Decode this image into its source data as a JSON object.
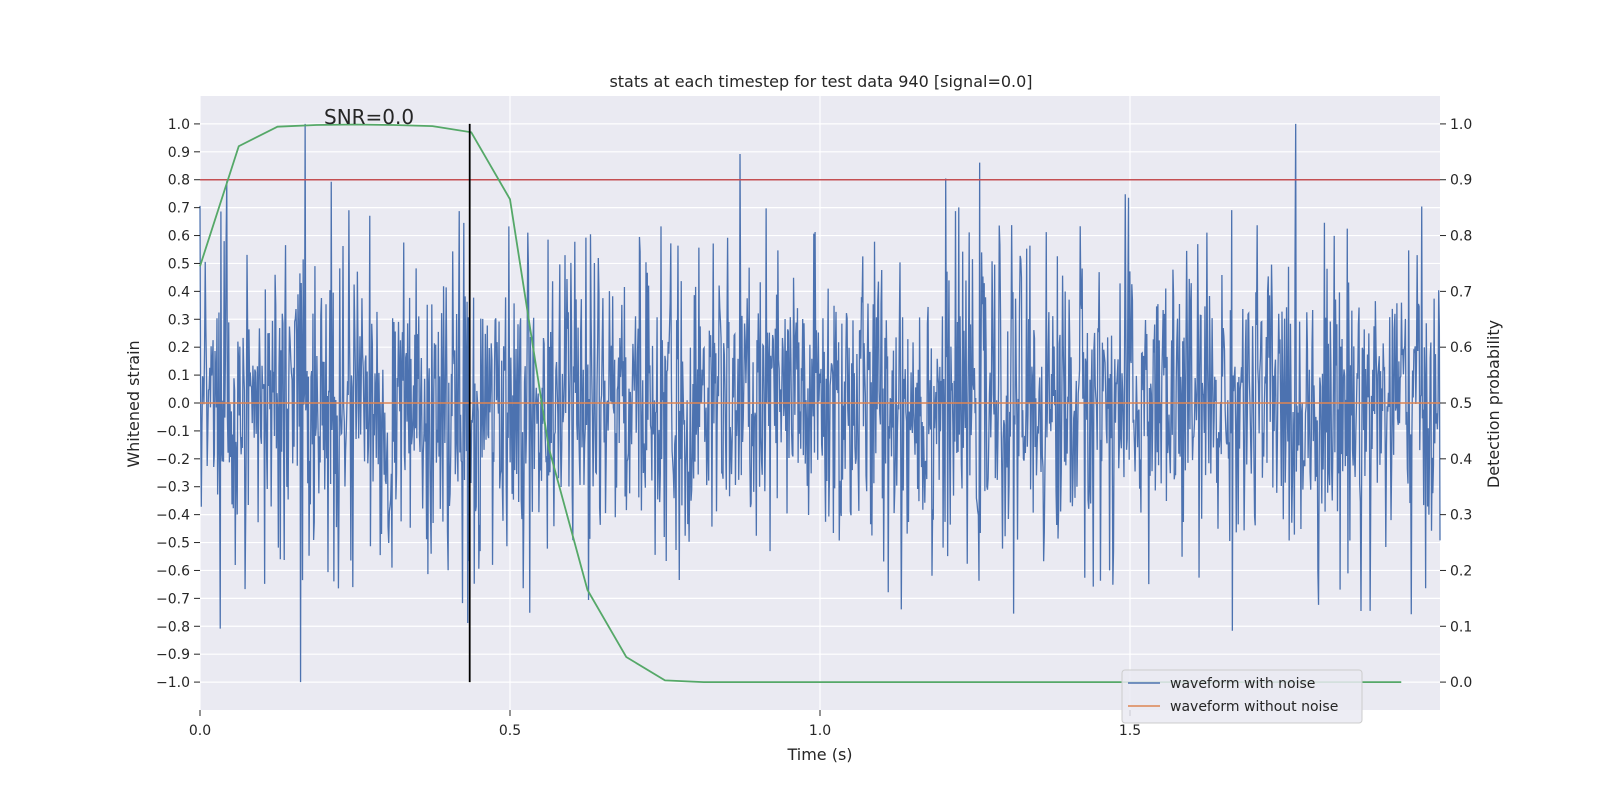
{
  "chart_data": {
    "type": "line",
    "title": "stats at each timestep for test data 940 [signal=0.0]",
    "xlabel": "Time (s)",
    "ylabel": "Whitened strain",
    "y2label": "Detection probability",
    "xlim": [
      0.0,
      2.0
    ],
    "ylim": [
      -1.1,
      1.1
    ],
    "y2lim": [
      -0.05,
      1.05
    ],
    "xticks": [
      0.0,
      0.5,
      1.0,
      1.5
    ],
    "xtick_labels": [
      "0.0",
      "0.5",
      "1.0",
      "1.5"
    ],
    "yticks": [
      -1.0,
      -0.9,
      -0.8,
      -0.7,
      -0.6,
      -0.5,
      -0.4,
      -0.3,
      -0.2,
      -0.1,
      0.0,
      0.1,
      0.2,
      0.3,
      0.4,
      0.5,
      0.6,
      0.7,
      0.8,
      0.9,
      1.0
    ],
    "ytick_labels": [
      "−1.0",
      "−0.9",
      "−0.8",
      "−0.7",
      "−0.6",
      "−0.5",
      "−0.4",
      "−0.3",
      "−0.2",
      "−0.1",
      "0.0",
      "0.1",
      "0.2",
      "0.3",
      "0.4",
      "0.5",
      "0.6",
      "0.7",
      "0.8",
      "0.9",
      "1.0"
    ],
    "y2ticks": [
      0.0,
      0.1,
      0.2,
      0.3,
      0.4,
      0.5,
      0.6,
      0.7,
      0.8,
      0.9,
      1.0
    ],
    "y2tick_labels": [
      "0.0",
      "0.1",
      "0.2",
      "0.3",
      "0.4",
      "0.5",
      "0.6",
      "0.7",
      "0.8",
      "0.9",
      "1.0"
    ],
    "annotation": "SNR=0.0",
    "annotation_at": {
      "x": 0.275,
      "y": 1.02
    },
    "vline_x": 0.435,
    "vline_yrange": [
      -1.0,
      1.0
    ],
    "threshold_hline_y2": 0.9,
    "noise": {
      "n": 1900,
      "seed": 940,
      "std": 0.27,
      "clip": 1.0
    },
    "series": [
      {
        "name": "waveform with noise",
        "axis": "left",
        "color": "#4c72b0",
        "note": "random whitened noise, 2 s"
      },
      {
        "name": "waveform without noise",
        "axis": "left",
        "color": "#dd8452",
        "values_constant": 0.0
      },
      {
        "name": "detection probability",
        "axis": "right",
        "color": "#55a868",
        "in_legend": false,
        "x": [
          0.0,
          0.0625,
          0.125,
          0.1875,
          0.25,
          0.3125,
          0.375,
          0.4375,
          0.5,
          0.5625,
          0.625,
          0.6875,
          0.75,
          0.8125,
          0.875,
          0.9375,
          1.0,
          1.0625,
          1.125,
          1.1875,
          1.25,
          1.3125,
          1.375,
          1.4375,
          1.5,
          1.5625,
          1.625,
          1.6875,
          1.75,
          1.8125,
          1.9375
        ],
        "values": [
          0.745,
          0.96,
          0.995,
          0.998,
          0.999,
          0.998,
          0.996,
          0.985,
          0.865,
          0.42,
          0.165,
          0.045,
          0.003,
          0.0,
          0.0,
          0.0,
          0.0,
          0.0,
          0.0,
          0.0,
          0.0,
          0.0,
          0.0,
          0.0,
          0.0,
          0.0,
          0.0,
          0.0,
          0.0,
          0.0,
          0.0
        ]
      },
      {
        "name": "threshold",
        "axis": "right",
        "color": "#c44e52",
        "in_legend": false,
        "values_constant": 0.9
      }
    ],
    "legend": {
      "placement": "lower-right",
      "entries": [
        {
          "label": "waveform with noise",
          "color": "#4c72b0"
        },
        {
          "label": "waveform without noise",
          "color": "#dd8452"
        }
      ]
    }
  }
}
